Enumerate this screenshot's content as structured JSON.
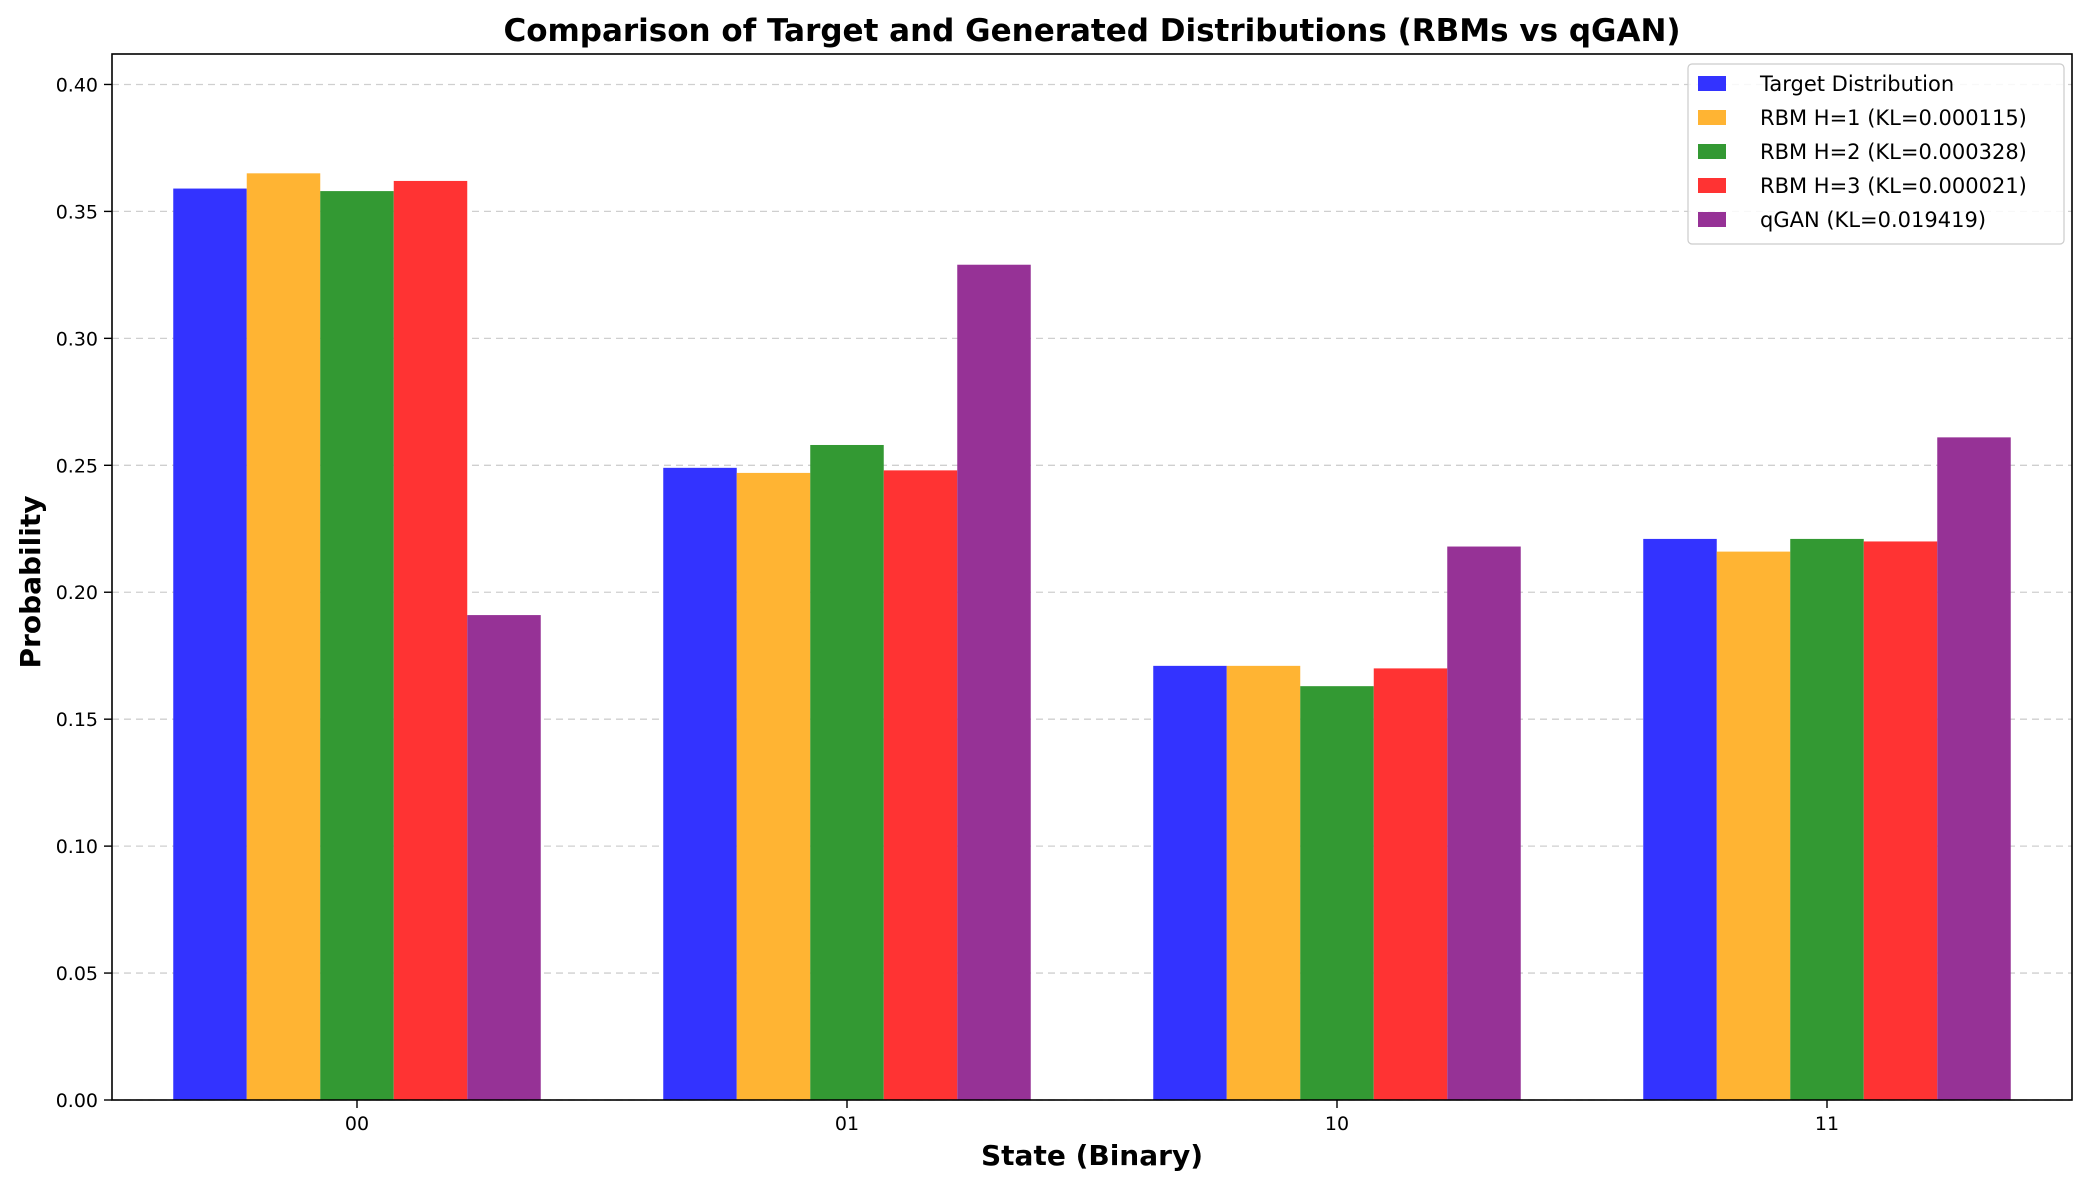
{
  "chart_data": {
    "type": "bar",
    "title": "Comparison of Target and Generated Distributions (RBMs vs qGAN)",
    "xlabel": "State (Binary)",
    "ylabel": "Probability",
    "categories": [
      "00",
      "01",
      "10",
      "11"
    ],
    "ylim": [
      0,
      0.412
    ],
    "yticks": [
      "0.00",
      "0.05",
      "0.10",
      "0.15",
      "0.20",
      "0.25",
      "0.30",
      "0.35",
      "0.40"
    ],
    "grid": "y-dashed",
    "legend_position": "top-right",
    "series": [
      {
        "name": "Target Distribution",
        "color": "#3333ff",
        "values": [
          0.359,
          0.249,
          0.171,
          0.221
        ]
      },
      {
        "name": "RBM H=1 (KL=0.000115)",
        "color": "#ffb433",
        "values": [
          0.365,
          0.247,
          0.171,
          0.216
        ]
      },
      {
        "name": "RBM H=2 (KL=0.000328)",
        "color": "#339933",
        "values": [
          0.358,
          0.258,
          0.163,
          0.221
        ]
      },
      {
        "name": "RBM H=3 (KL=0.000021)",
        "color": "#ff3333",
        "values": [
          0.362,
          0.248,
          0.17,
          0.22
        ]
      },
      {
        "name": "qGAN (KL=0.019419)",
        "color": "#963296",
        "values": [
          0.191,
          0.329,
          0.218,
          0.261
        ]
      }
    ]
  }
}
